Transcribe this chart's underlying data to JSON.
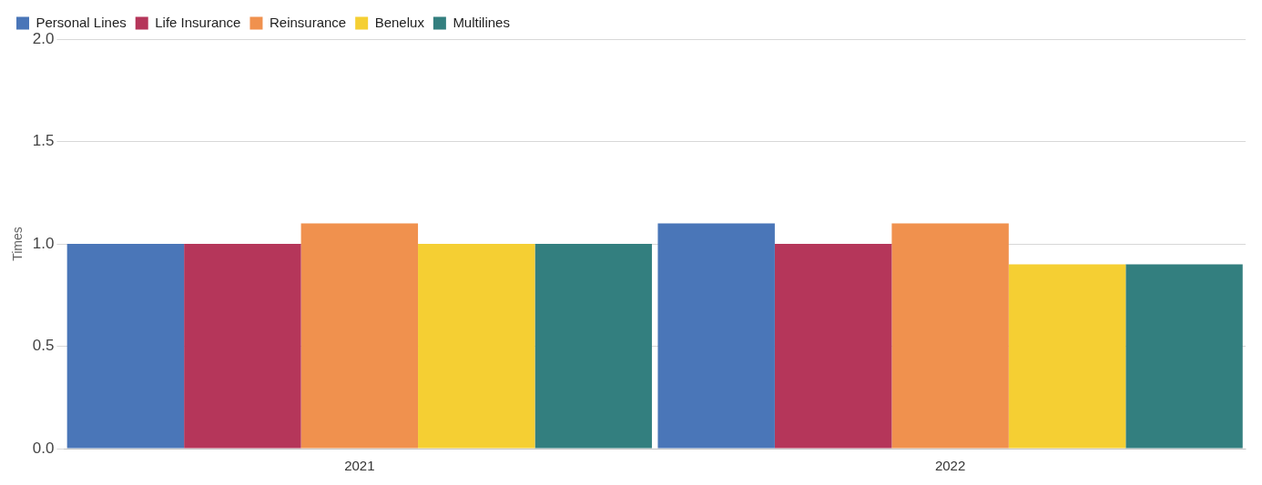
{
  "chart_data": {
    "type": "bar",
    "ylabel": "Times",
    "categories": [
      "2021",
      "2022"
    ],
    "series": [
      {
        "name": "Personal Lines",
        "color": "#4a76b8",
        "values": [
          1.0,
          1.1
        ]
      },
      {
        "name": "Life Insurance",
        "color": "#b5365a",
        "values": [
          1.0,
          1.0
        ]
      },
      {
        "name": "Reinsurance",
        "color": "#f0914e",
        "values": [
          1.1,
          1.1
        ]
      },
      {
        "name": "Benelux",
        "color": "#f5cf33",
        "values": [
          1.0,
          0.9
        ]
      },
      {
        "name": "Multilines",
        "color": "#337f7f",
        "values": [
          1.0,
          0.9
        ]
      }
    ],
    "ylim": [
      0,
      2
    ],
    "yticks": [
      {
        "value": 0,
        "label": "0.0"
      },
      {
        "value": 0.5,
        "label": "0.5"
      },
      {
        "value": 1,
        "label": "1.0"
      },
      {
        "value": 1.5,
        "label": "1.5"
      },
      {
        "value": 2,
        "label": "2.0"
      }
    ],
    "grid": "y",
    "legend": "top left"
  }
}
